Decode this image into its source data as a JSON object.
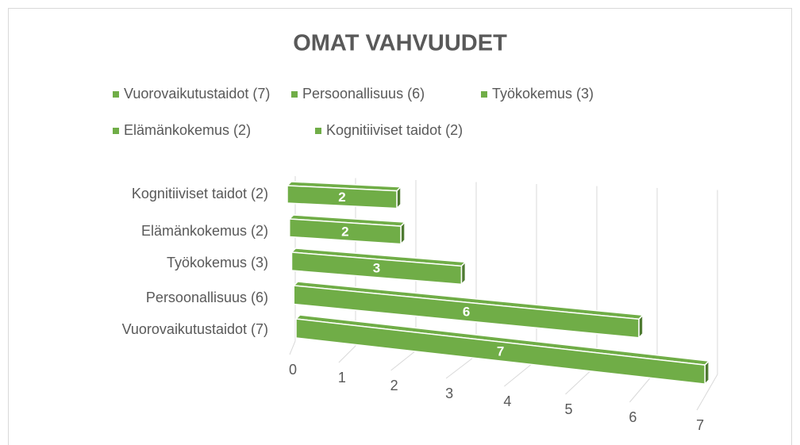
{
  "chart_data": {
    "type": "bar",
    "orientation": "horizontal",
    "title": "OMAT VAHVUUDET",
    "categories": [
      "Vuorovaikutustaidot (7)",
      "Persoonallisuus (6)",
      "Työkokemus (3)",
      "Elämänkokemus (2)",
      "Kognitiiviset taidot (2)"
    ],
    "values": [
      7,
      6,
      3,
      2,
      2
    ],
    "color": "#70ad47",
    "xlim": [
      0,
      7
    ],
    "xticks": [
      0,
      1,
      2,
      3,
      4,
      5,
      6,
      7
    ],
    "grid": true,
    "legend": "top"
  }
}
